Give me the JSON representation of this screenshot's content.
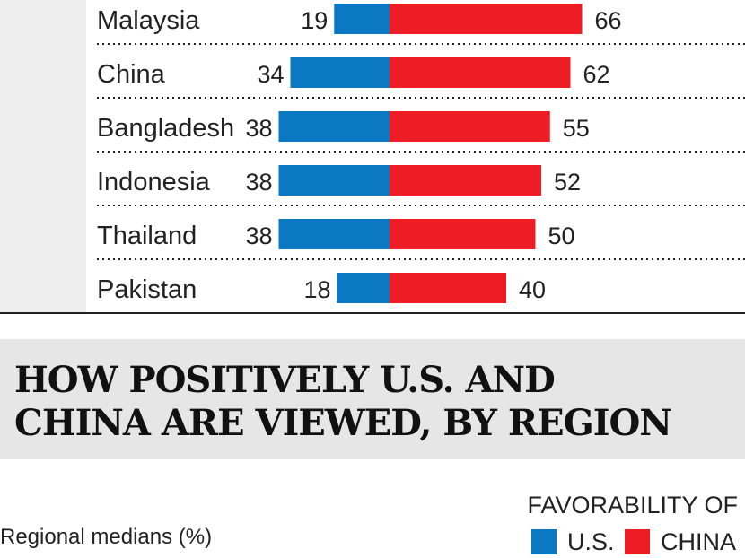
{
  "title_lines": [
    "HOW POSITIVELY U.S. AND",
    "CHINA ARE VIEWED, BY REGION"
  ],
  "subtitle": "Regional medians (%)",
  "legend": {
    "heading": "FAVORABILITY OF",
    "us_label": "U.S.",
    "china_label": "CHINA"
  },
  "colors": {
    "us": "#0a78c2",
    "china": "#ee1c25",
    "flag_strip": "#eeeeee"
  },
  "chart_data": {
    "type": "bar",
    "orientation": "horizontal-diverging",
    "categories": [
      "Malaysia",
      "China",
      "Bangladesh",
      "Indonesia",
      "Thailand",
      "Pakistan"
    ],
    "series": [
      {
        "name": "U.S.",
        "values": [
          19,
          34,
          38,
          38,
          38,
          18
        ]
      },
      {
        "name": "CHINA",
        "values": [
          66,
          62,
          55,
          52,
          50,
          40
        ]
      }
    ],
    "flags": [
      "malaysia-flag-icon",
      "china-flag-icon",
      "bangladesh-flag-icon",
      "indonesia-flag-icon",
      "thailand-flag-icon",
      "pakistan-flag-icon"
    ],
    "gridlines": "dotted separators between rows",
    "legend_position": "bottom-right"
  }
}
